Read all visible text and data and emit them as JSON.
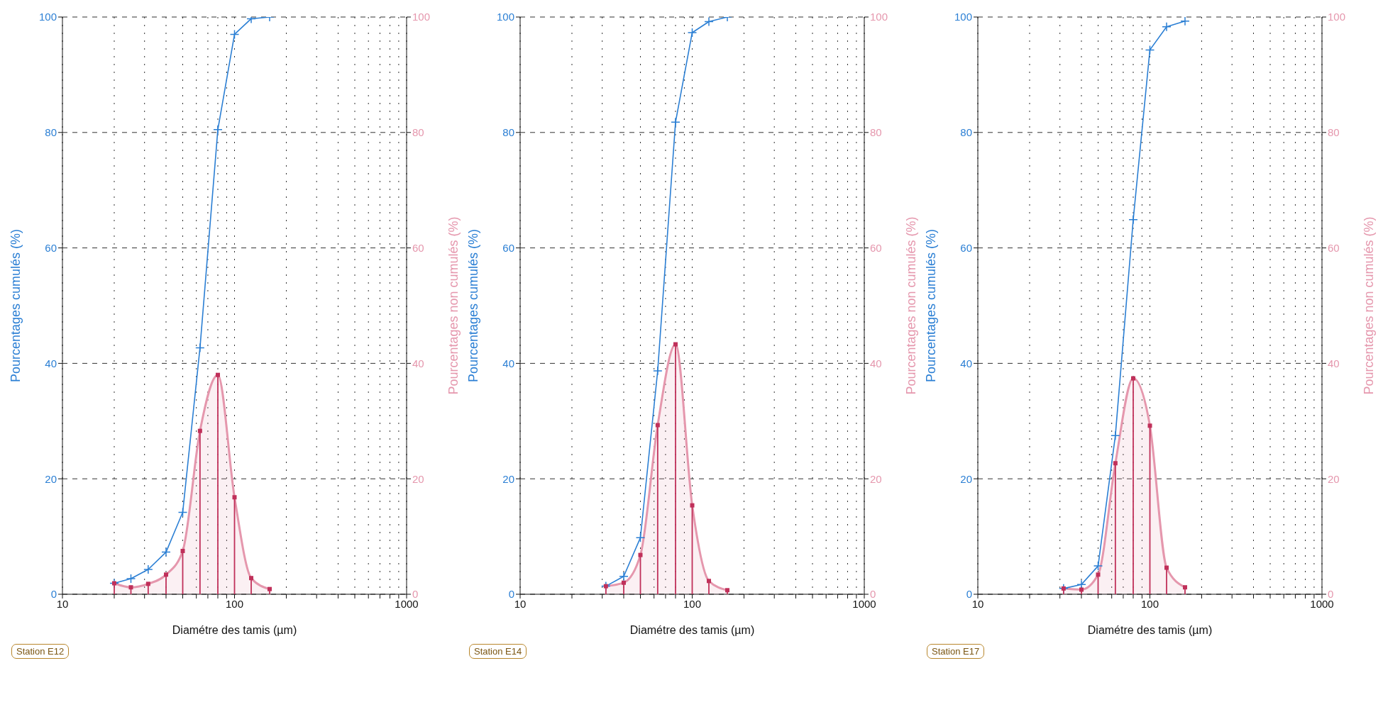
{
  "chart_data": [
    {
      "type": "line",
      "annotations": [
        "Station E12"
      ],
      "xlabel": "Diamétre des tamis (µm)",
      "ylabel": "Pourcentages cumulés (%)",
      "y2label": "Pourcentages non cumulés (%)",
      "log": "x",
      "grid": true,
      "xlim": [
        10,
        1000
      ],
      "xticks": [
        10,
        {
          "value": 20,
          "label": null
        },
        {
          "value": 30,
          "label": null
        },
        {
          "value": 40,
          "label": null
        },
        {
          "value": 50,
          "label": null
        },
        {
          "value": 60,
          "label": null
        },
        {
          "value": 70,
          "label": null
        },
        {
          "value": 80,
          "label": null
        },
        {
          "value": 90,
          "label": null
        },
        100,
        {
          "value": 200,
          "label": null
        },
        {
          "value": 300,
          "label": null
        },
        {
          "value": 400,
          "label": null
        },
        {
          "value": 500,
          "label": null
        },
        {
          "value": 600,
          "label": null
        },
        {
          "value": 700,
          "label": null
        },
        {
          "value": 800,
          "label": null
        },
        {
          "value": 900,
          "label": null
        },
        1000
      ],
      "ylim": [
        0,
        100
      ],
      "yticks": [
        0,
        20,
        40,
        60,
        80,
        100
      ],
      "y2lim": [
        0,
        100
      ],
      "y2ticks": [
        0,
        20,
        40,
        60,
        80,
        100
      ],
      "x": [
        20,
        25,
        31.5,
        40,
        50,
        63,
        80,
        100,
        125,
        160
      ],
      "series": [
        {
          "color": "#2b7fd4",
          "marker": "cross",
          "values": [
            1.9,
            2.7,
            4.3,
            7.3,
            14.2,
            42.7,
            80.5,
            97,
            99.7,
            100
          ]
        },
        {
          "type": "area",
          "axis": "y2",
          "color": "#e597ad",
          "values": [
            1.9,
            1.2,
            1.8,
            3.4,
            7.5,
            28.3,
            38,
            16.8,
            2.8,
            0.9
          ]
        },
        {
          "type": "lollipop",
          "axis": "y2",
          "color": "#c0305a",
          "marker": "square",
          "values": [
            1.9,
            1.2,
            1.8,
            3.4,
            7.5,
            28.3,
            38,
            16.8,
            2.8,
            0.9
          ]
        }
      ]
    },
    {
      "type": "line",
      "annotations": [
        "Station E14"
      ],
      "xlabel": "Diamétre des tamis (µm)",
      "ylabel": "Pourcentages cumulés (%)",
      "y2label": "Pourcentages non cumulés (%)",
      "log": "x",
      "grid": true,
      "xlim": [
        10,
        1000
      ],
      "xticks": [
        10,
        {
          "value": 20,
          "label": null
        },
        {
          "value": 30,
          "label": null
        },
        {
          "value": 40,
          "label": null
        },
        {
          "value": 50,
          "label": null
        },
        {
          "value": 60,
          "label": null
        },
        {
          "value": 70,
          "label": null
        },
        {
          "value": 80,
          "label": null
        },
        {
          "value": 90,
          "label": null
        },
        100,
        {
          "value": 200,
          "label": null
        },
        {
          "value": 300,
          "label": null
        },
        {
          "value": 400,
          "label": null
        },
        {
          "value": 500,
          "label": null
        },
        {
          "value": 600,
          "label": null
        },
        {
          "value": 700,
          "label": null
        },
        {
          "value": 800,
          "label": null
        },
        {
          "value": 900,
          "label": null
        },
        1000
      ],
      "ylim": [
        0,
        100
      ],
      "yticks": [
        0,
        20,
        40,
        60,
        80,
        100
      ],
      "y2lim": [
        0,
        100
      ],
      "y2ticks": [
        0,
        20,
        40,
        60,
        80,
        100
      ],
      "x": [
        31.5,
        40,
        50,
        63,
        80,
        100,
        125,
        160
      ],
      "series": [
        {
          "color": "#2b7fd4",
          "marker": "cross",
          "values": [
            1.4,
            3.1,
            9.8,
            38.7,
            81.8,
            97.3,
            99.2,
            100
          ]
        },
        {
          "type": "area",
          "axis": "y2",
          "color": "#e597ad",
          "values": [
            1.4,
            2,
            6.8,
            29.3,
            43.3,
            15.4,
            2.3,
            0.7
          ]
        },
        {
          "type": "lollipop",
          "axis": "y2",
          "color": "#c0305a",
          "marker": "square",
          "values": [
            1.4,
            2,
            6.8,
            29.3,
            43.3,
            15.4,
            2.3,
            0.7
          ]
        }
      ]
    },
    {
      "type": "line",
      "annotations": [
        "Station E17"
      ],
      "xlabel": "Diamétre des tamis (µm)",
      "ylabel": "Pourcentages cumulés (%)",
      "y2label": "Pourcentages non cumulés (%)",
      "log": "x",
      "grid": true,
      "xlim": [
        10,
        1000
      ],
      "xticks": [
        10,
        {
          "value": 20,
          "label": null
        },
        {
          "value": 30,
          "label": null
        },
        {
          "value": 40,
          "label": null
        },
        {
          "value": 50,
          "label": null
        },
        {
          "value": 60,
          "label": null
        },
        {
          "value": 70,
          "label": null
        },
        {
          "value": 80,
          "label": null
        },
        {
          "value": 90,
          "label": null
        },
        100,
        {
          "value": 200,
          "label": null
        },
        {
          "value": 300,
          "label": null
        },
        {
          "value": 400,
          "label": null
        },
        {
          "value": 500,
          "label": null
        },
        {
          "value": 600,
          "label": null
        },
        {
          "value": 700,
          "label": null
        },
        {
          "value": 800,
          "label": null
        },
        {
          "value": 900,
          "label": null
        },
        1000
      ],
      "ylim": [
        0,
        100
      ],
      "yticks": [
        0,
        20,
        40,
        60,
        80,
        100
      ],
      "y2lim": [
        0,
        100
      ],
      "y2ticks": [
        0,
        20,
        40,
        60,
        80,
        100
      ],
      "x": [
        31.5,
        40,
        50,
        63,
        80,
        100,
        125,
        160
      ],
      "series": [
        {
          "color": "#2b7fd4",
          "marker": "cross",
          "values": [
            1,
            1.7,
            4.9,
            27.5,
            64.9,
            94.3,
            98.3,
            99.3
          ]
        },
        {
          "type": "area",
          "axis": "y2",
          "color": "#e597ad",
          "values": [
            1,
            0.8,
            3.4,
            22.7,
            37.4,
            29.2,
            4.6,
            1.2
          ]
        },
        {
          "type": "lollipop",
          "axis": "y2",
          "color": "#c0305a",
          "marker": "square",
          "values": [
            1,
            0.8,
            3.4,
            22.7,
            37.4,
            29.2,
            4.6,
            1.2
          ]
        }
      ]
    }
  ]
}
